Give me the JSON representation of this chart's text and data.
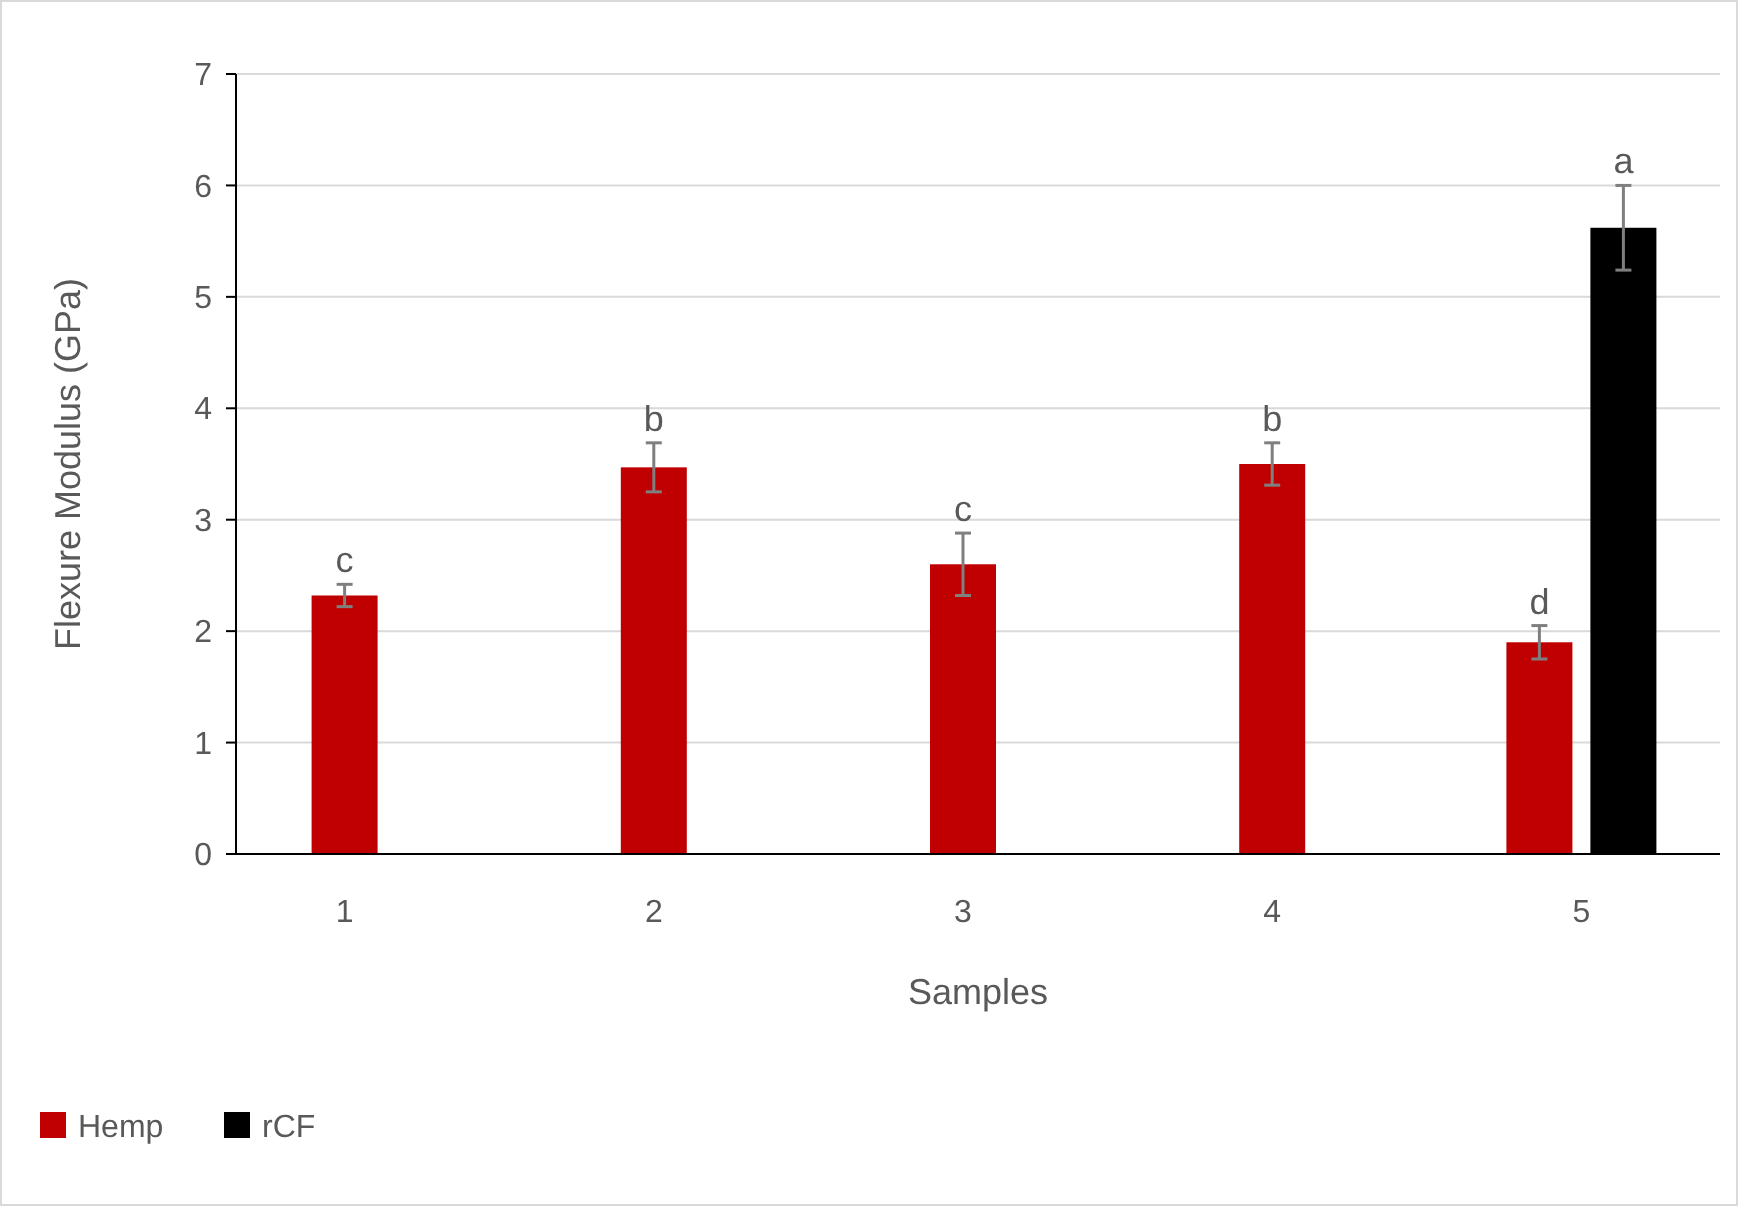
{
  "chart_data": {
    "type": "bar",
    "xlabel": "Samples",
    "ylabel": "Flexure Modulus (GPa)",
    "categories": [
      "1",
      "2",
      "3",
      "4",
      "5"
    ],
    "series": [
      {
        "name": "Hemp",
        "color": "#c00000",
        "values": [
          2.32,
          3.47,
          2.6,
          3.5,
          1.9
        ],
        "errors": [
          0.1,
          0.22,
          0.28,
          0.19,
          0.15
        ]
      },
      {
        "name": "rCF",
        "color": "#000000",
        "values": [
          null,
          null,
          null,
          null,
          5.62
        ],
        "errors": [
          null,
          null,
          null,
          null,
          0.38
        ]
      }
    ],
    "ylim": [
      0,
      7
    ],
    "yticks": [
      0,
      1,
      2,
      3,
      4,
      5,
      6,
      7
    ],
    "grid": "y",
    "legend": "bottom left",
    "annotations": [
      {
        "text": "c",
        "x": "1",
        "y": 2.32
      },
      {
        "text": "b",
        "x": "2",
        "y": 3.47
      },
      {
        "text": "c",
        "x": "3",
        "y": 2.6
      },
      {
        "text": "b",
        "x": "4",
        "y": 3.5
      },
      {
        "text": "d",
        "x": "5",
        "y": 1.9
      },
      {
        "text": "a",
        "x": "5",
        "y": 5.62
      }
    ]
  }
}
